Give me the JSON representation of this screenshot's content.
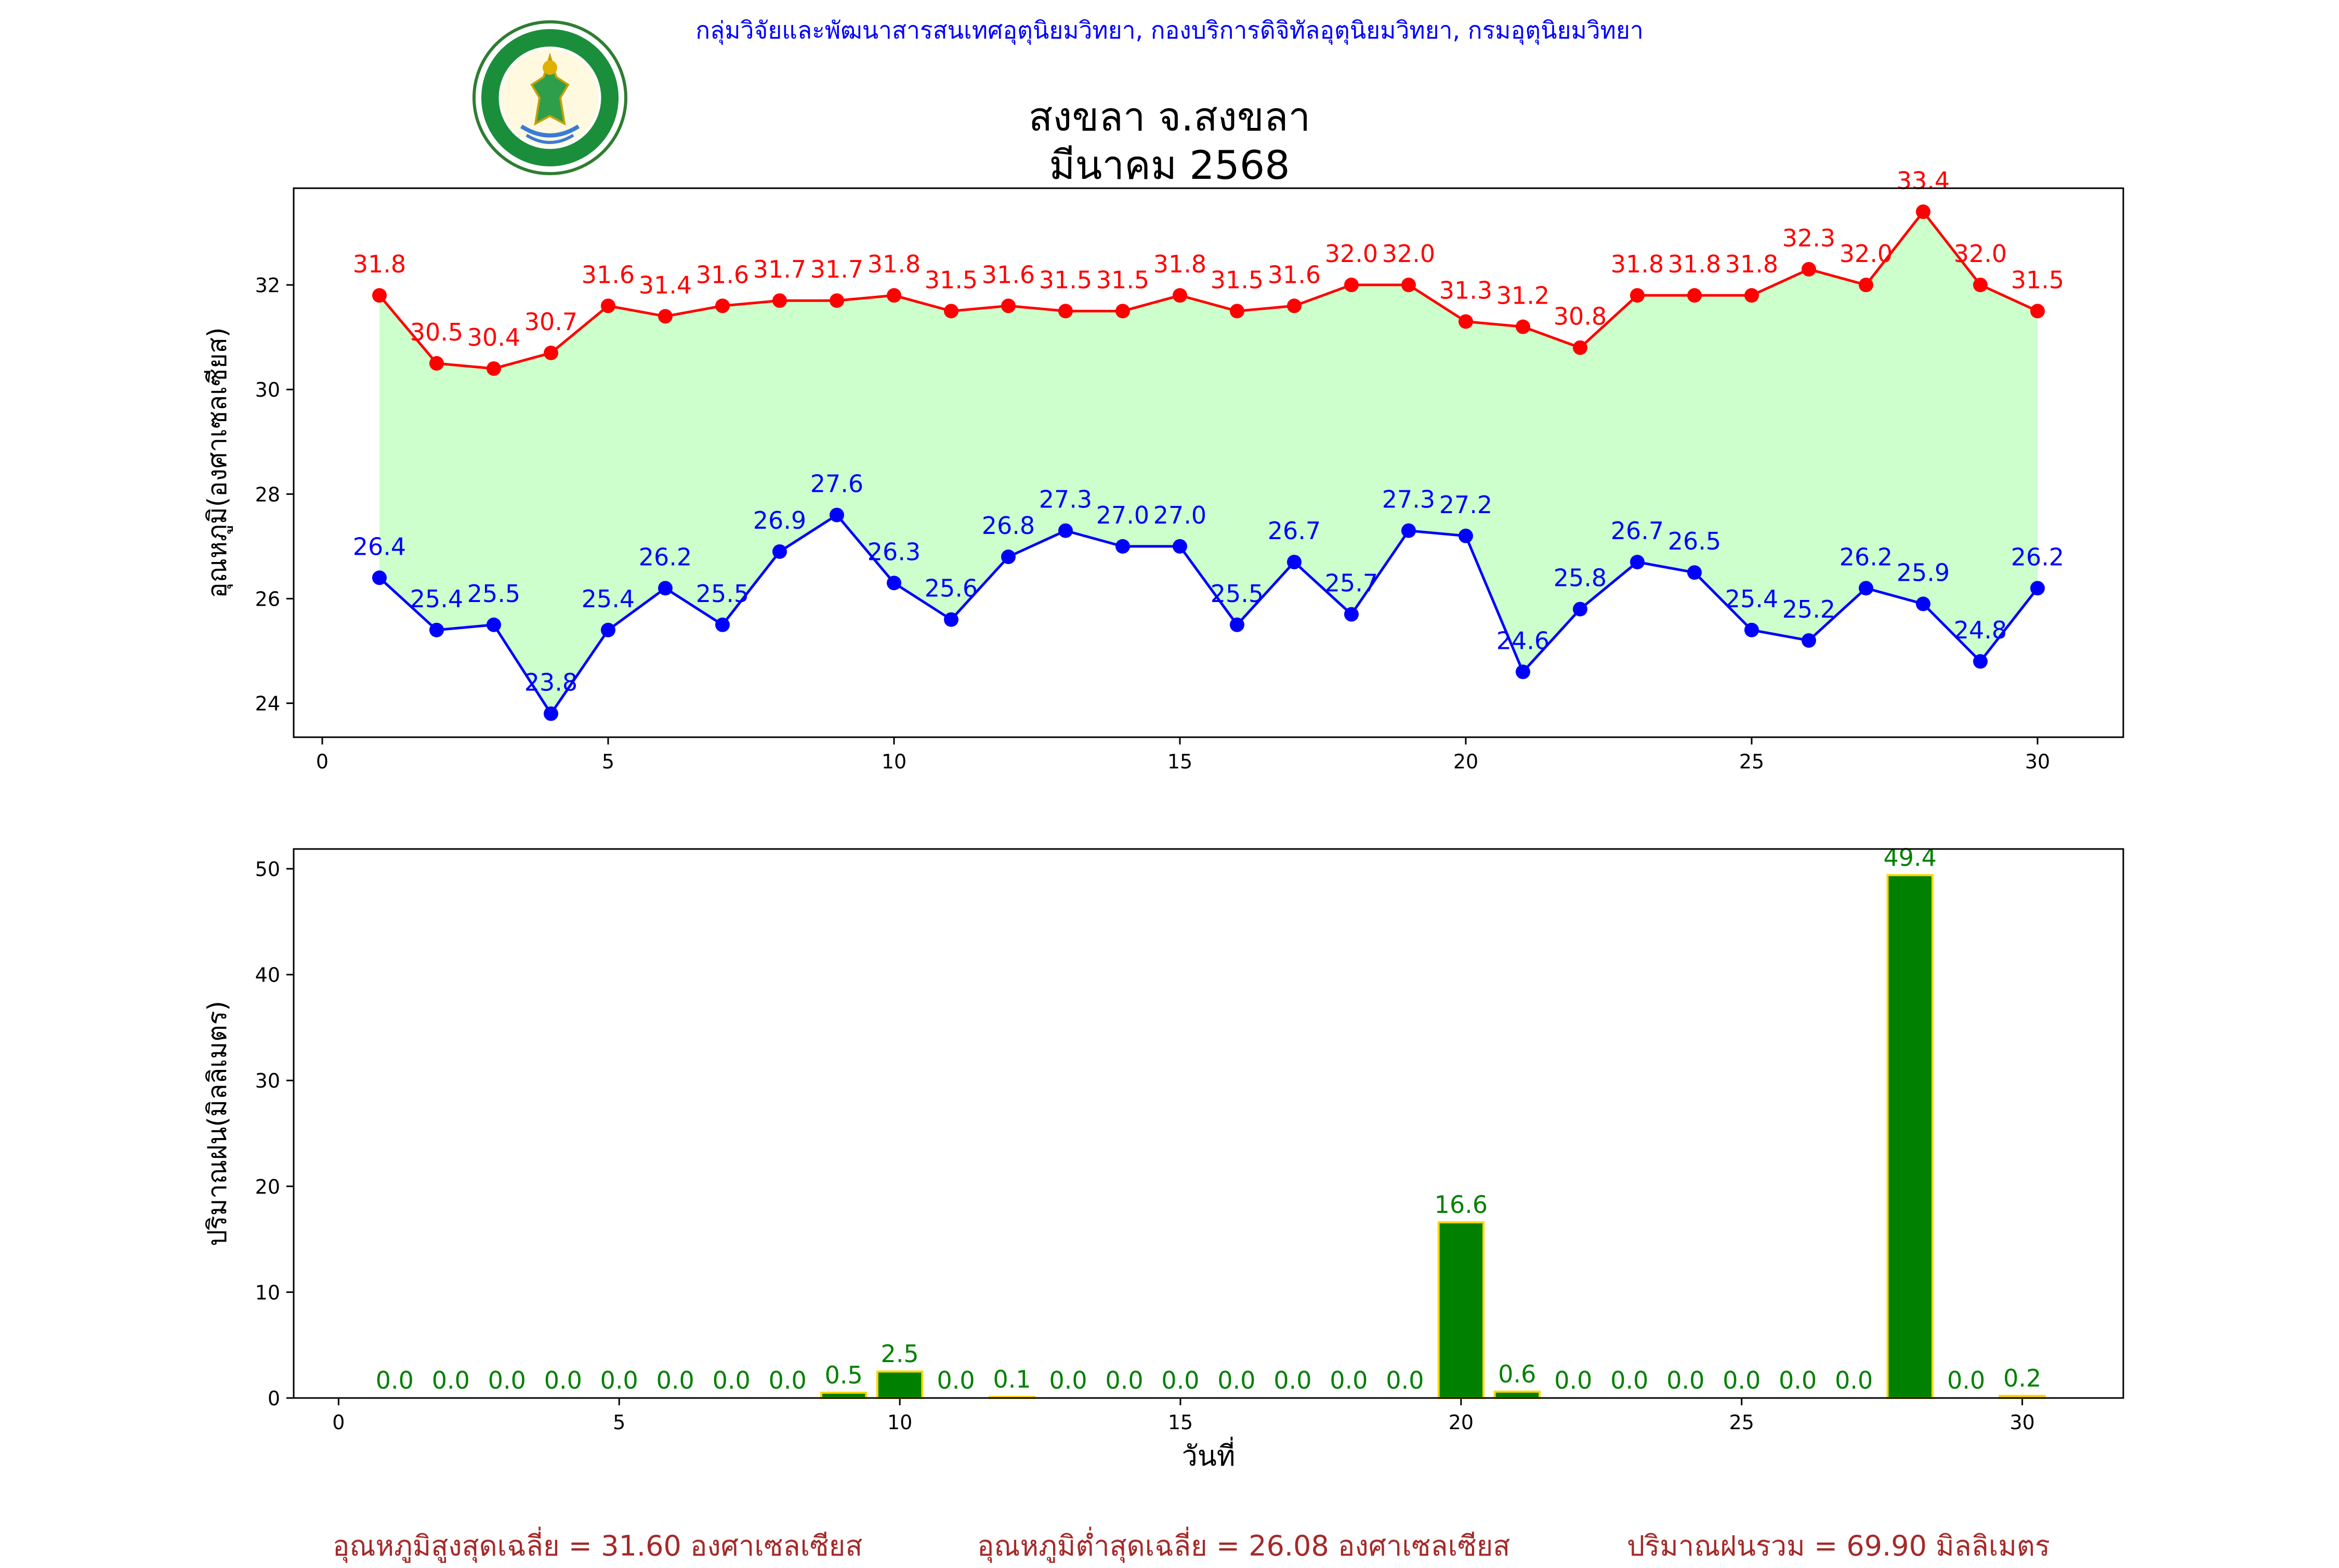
{
  "header": {
    "organization": "กลุ่มวิจัยและพัฒนาสารสนเทศอุตุนิยมวิทยา, กองบริการดิจิทัลอุตุนิยมวิทยา, กรมอุตุนิยมวิทยา",
    "logo_icon": "meteorological-department-seal-icon",
    "title_line1": "สงขลา จ.สงขลา",
    "title_line2": "มีนาคม 2568"
  },
  "colors": {
    "max_temp": "#ff0000",
    "min_temp": "#0000ff",
    "fill": "#ccffcc",
    "rain_bar": "#008000",
    "rain_edge": "#ffd700",
    "rain_label": "#008000",
    "footer": "#a52a2a"
  },
  "chart_data": [
    {
      "type": "line",
      "ylabel": "อุณหภูมิ(องศาเซลเซียส)",
      "xlim": [
        -0.5,
        31.5
      ],
      "ylim": [
        23.35,
        33.85
      ],
      "xticks": [
        0,
        5,
        10,
        15,
        20,
        25,
        30
      ],
      "yticks": [
        24,
        26,
        28,
        30,
        32
      ],
      "grid": false,
      "x": [
        1,
        2,
        3,
        4,
        5,
        6,
        7,
        8,
        9,
        10,
        11,
        12,
        13,
        14,
        15,
        16,
        17,
        18,
        19,
        20,
        21,
        22,
        23,
        24,
        25,
        26,
        27,
        28,
        29,
        30
      ],
      "series": [
        {
          "values": [
            31.8,
            30.5,
            30.4,
            30.7,
            31.6,
            31.4,
            31.6,
            31.7,
            31.7,
            31.8,
            31.5,
            31.6,
            31.5,
            31.5,
            31.8,
            31.5,
            31.6,
            32.0,
            32.0,
            31.3,
            31.2,
            30.8,
            31.8,
            31.8,
            31.8,
            32.3,
            32.0,
            33.4,
            32.0,
            31.5
          ]
        },
        {
          "values": [
            26.4,
            25.4,
            25.5,
            23.8,
            25.4,
            26.2,
            25.5,
            26.9,
            27.6,
            26.3,
            25.6,
            26.8,
            27.3,
            27.0,
            27.0,
            25.5,
            26.7,
            25.7,
            27.3,
            27.2,
            24.6,
            25.8,
            26.7,
            26.5,
            25.4,
            25.2,
            26.2,
            25.9,
            24.8,
            26.2
          ]
        }
      ]
    },
    {
      "type": "bar",
      "ylabel": "ปริมาณฝน(มิลลิเมตร)",
      "xlabel": "วันที่",
      "xlim": [
        -0.8,
        31.8
      ],
      "ylim": [
        0,
        51.87
      ],
      "xticks": [
        0,
        5,
        10,
        15,
        20,
        25,
        30
      ],
      "yticks": [
        0,
        10,
        20,
        30,
        40,
        50
      ],
      "grid": false,
      "x": [
        1,
        2,
        3,
        4,
        5,
        6,
        7,
        8,
        9,
        10,
        11,
        12,
        13,
        14,
        15,
        16,
        17,
        18,
        19,
        20,
        21,
        22,
        23,
        24,
        25,
        26,
        27,
        28,
        29,
        30
      ],
      "values": [
        0.0,
        0.0,
        0.0,
        0.0,
        0.0,
        0.0,
        0.0,
        0.0,
        0.5,
        2.5,
        0.0,
        0.1,
        0.0,
        0.0,
        0.0,
        0.0,
        0.0,
        0.0,
        0.0,
        16.6,
        0.6,
        0.0,
        0.0,
        0.0,
        0.0,
        0.0,
        0.0,
        49.4,
        0.0,
        0.2
      ]
    }
  ],
  "footer": {
    "avg_max": "อุณหภูมิสูงสุดเฉลี่ย = 31.60 องศาเซลเซียส",
    "avg_min": "อุณหภูมิต่ำสุดเฉลี่ย = 26.08 องศาเซลเซียส",
    "total_rain": "ปริมาณฝนรวม = 69.90 มิลลิเมตร"
  }
}
